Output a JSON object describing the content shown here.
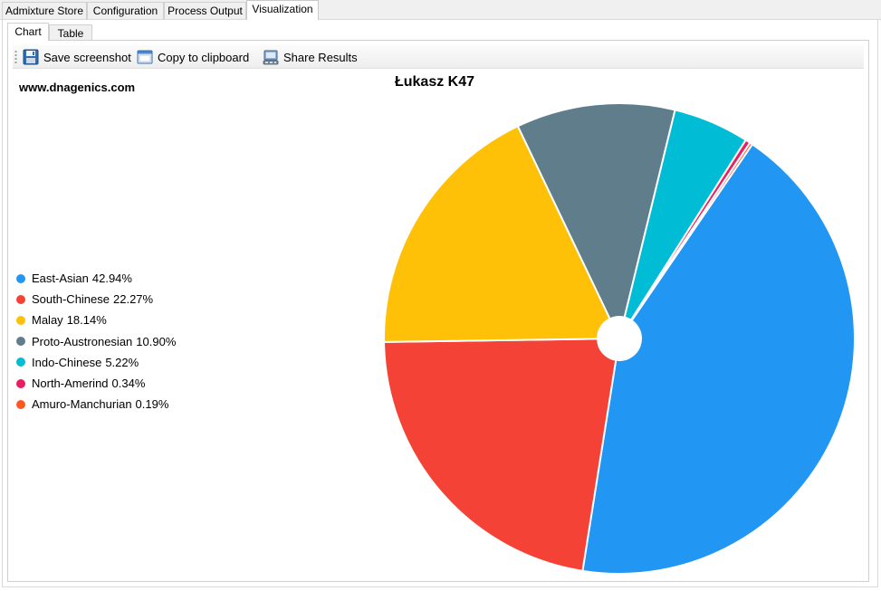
{
  "top_tabs": [
    {
      "label": "Admixture Store"
    },
    {
      "label": "Configuration"
    },
    {
      "label": "Process Output"
    },
    {
      "label": "Visualization"
    }
  ],
  "inner_tabs": [
    {
      "label": "Chart"
    },
    {
      "label": "Table"
    }
  ],
  "toolbar": {
    "save_label": "Save screenshot",
    "copy_label": "Copy to clipboard",
    "share_label": "Share Results"
  },
  "watermark": "www.dnagenics.com",
  "chart_data": {
    "type": "pie",
    "title": "Łukasz K47",
    "legend_position": "left",
    "slices": [
      {
        "name": "East-Asian",
        "pct_label": "42.94%",
        "value": 42.94,
        "color": "#2196f3"
      },
      {
        "name": "South-Chinese",
        "pct_label": "22.27%",
        "value": 22.27,
        "color": "#f44336"
      },
      {
        "name": "Malay",
        "pct_label": "18.14%",
        "value": 18.14,
        "color": "#ffc107"
      },
      {
        "name": "Proto-Austronesian",
        "pct_label": "10.90%",
        "value": 10.9,
        "color": "#607d8b"
      },
      {
        "name": "Indo-Chinese",
        "pct_label": "5.22%",
        "value": 5.22,
        "color": "#00bcd4"
      },
      {
        "name": "North-Amerind",
        "pct_label": "0.34%",
        "value": 0.34,
        "color": "#e91e63"
      },
      {
        "name": "Amuro-Manchurian",
        "pct_label": "0.19%",
        "value": 0.19,
        "color": "#ff5722"
      }
    ]
  }
}
